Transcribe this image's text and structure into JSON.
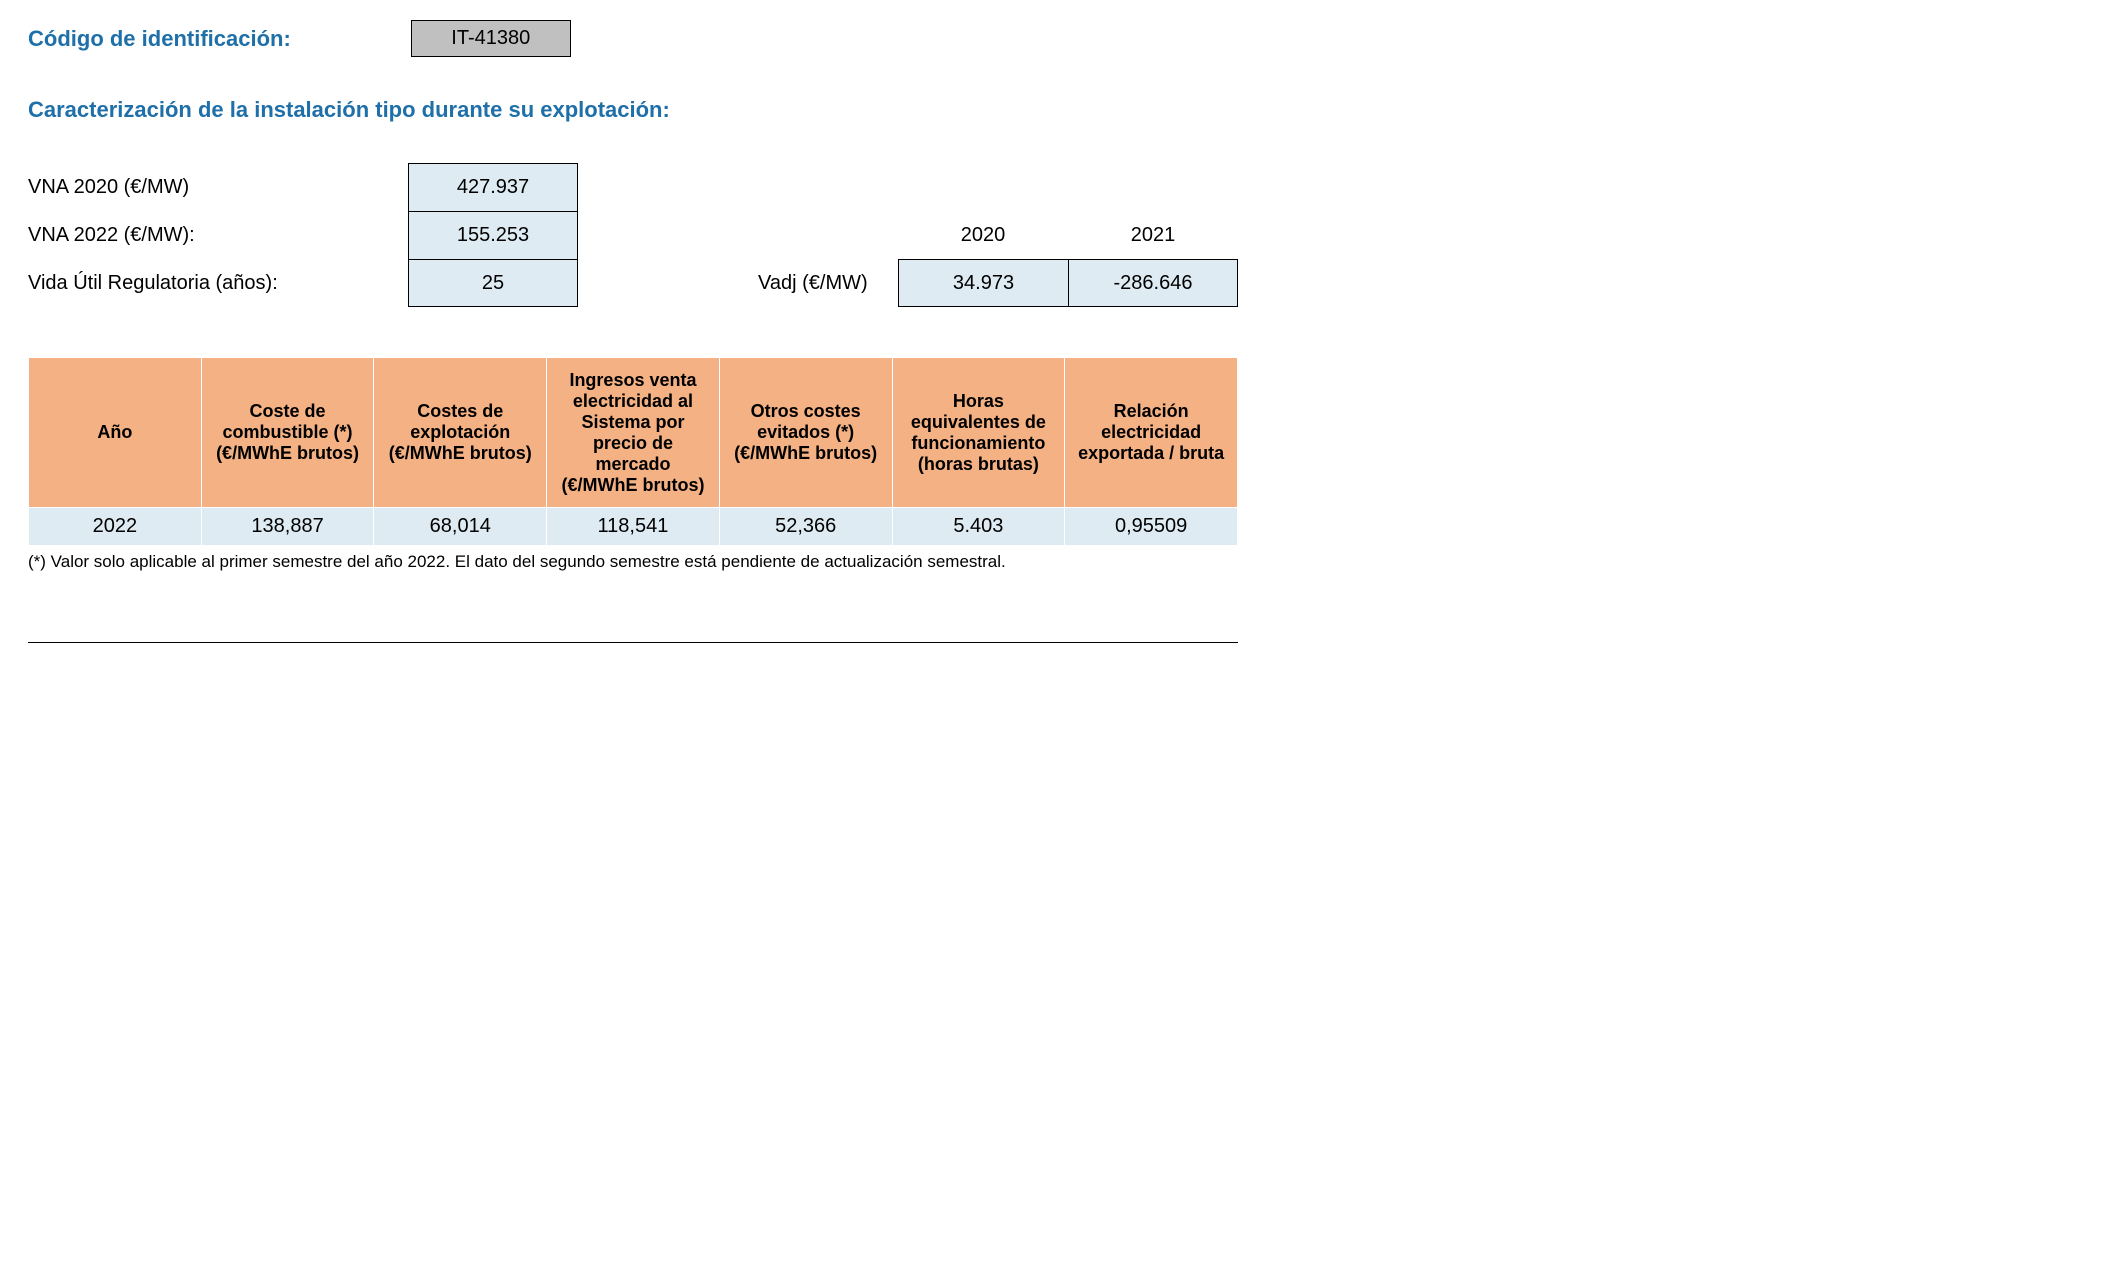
{
  "header": {
    "codigo_label": "Código de identificación:",
    "codigo_value": "IT-41380"
  },
  "section_title": "Caracterización de la instalación tipo durante su explotación:",
  "params": {
    "vna2020_label": "VNA 2020 (€/MW)",
    "vna2020_value": "427.937",
    "vna2022_label": "VNA 2022 (€/MW):",
    "vna2022_value": "155.253",
    "vida_label": "Vida Útil Regulatoria (años):",
    "vida_value": "25"
  },
  "vadj": {
    "label": "Vadj (€/MW)",
    "year1": "2020",
    "year2": "2021",
    "val1": "34.973",
    "val2": "-286.646"
  },
  "table": {
    "columns": [
      "Año",
      "Coste de combustible (*) (€/MWhE brutos)",
      "Costes de explotación (€/MWhE brutos)",
      "Ingresos venta electricidad al Sistema por precio de mercado (€/MWhE brutos)",
      "Otros costes evitados (*) (€/MWhE brutos)",
      "Horas equivalentes de funcionamiento (horas brutas)",
      "Relación electricidad exportada / bruta"
    ],
    "rows": [
      [
        "2022",
        "138,887",
        "68,014",
        "118,541",
        "52,366",
        "5.403",
        "0,95509"
      ]
    ],
    "header_bg": "#f4b183",
    "row_bg": "#deebf3",
    "border_color": "#ffffff"
  },
  "footnote": "(*) Valor solo aplicable al primer semestre del año 2022. El dato del segundo semestre está pendiente de actualización semestral.",
  "colors": {
    "heading": "#1f6fa8",
    "code_box_bg": "#c0c0c0",
    "value_box_bg": "#deebf3",
    "page_bg": "#ffffff"
  }
}
